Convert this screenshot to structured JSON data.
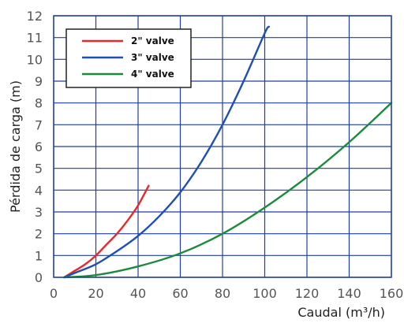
{
  "chart_data": {
    "type": "line",
    "title": "",
    "xlabel": "Caudal (m³/h)",
    "ylabel": "Pérdida de carga (m)",
    "xlim": [
      0,
      160
    ],
    "ylim": [
      0,
      12
    ],
    "xticks": [
      "0",
      "20",
      "40",
      "60",
      "80",
      "100",
      "120",
      "140",
      "160"
    ],
    "yticks": [
      "0",
      "1",
      "2",
      "3",
      "4",
      "5",
      "6",
      "7",
      "8",
      "9",
      "10",
      "11",
      "12"
    ],
    "grid": true,
    "legend_position": "top-left",
    "series": [
      {
        "name": "2\"  valve",
        "color": "#e8282b",
        "x": [
          5,
          10,
          15,
          20,
          25,
          30,
          35,
          40,
          45
        ],
        "y": [
          0,
          0.3,
          0.6,
          1.0,
          1.5,
          2.0,
          2.6,
          3.3,
          4.2
        ]
      },
      {
        "name": "3\"  valve",
        "color": "#1f4fb4",
        "x": [
          5,
          10,
          20,
          30,
          40,
          50,
          60,
          70,
          80,
          90,
          100,
          102
        ],
        "y": [
          0,
          0.2,
          0.6,
          1.2,
          1.9,
          2.8,
          3.9,
          5.3,
          7.0,
          9.0,
          11.2,
          11.5
        ]
      },
      {
        "name": "4\"  valve",
        "color": "#1b8a3a",
        "x": [
          5,
          20,
          40,
          60,
          80,
          100,
          120,
          140,
          160
        ],
        "y": [
          0,
          0.1,
          0.5,
          1.1,
          2.0,
          3.2,
          4.6,
          6.2,
          8.0
        ]
      }
    ]
  }
}
